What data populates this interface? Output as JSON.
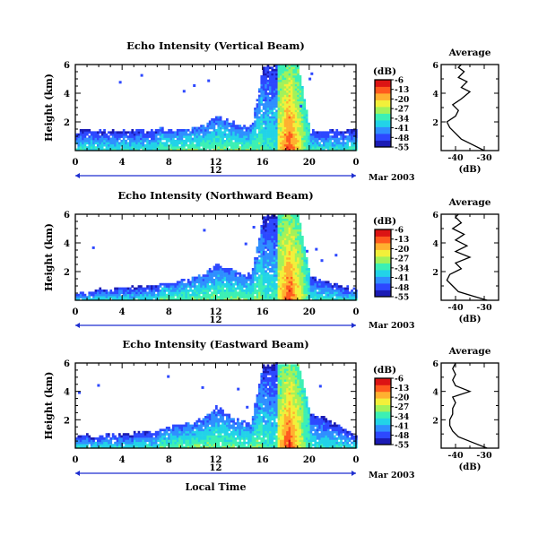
{
  "colors": {
    "colormap": [
      "#1b1bb4",
      "#2d48ff",
      "#2f8fff",
      "#22d3e8",
      "#3cf0b4",
      "#a2f25a",
      "#f2f03a",
      "#ffb030",
      "#ff5a1e",
      "#dc1414"
    ],
    "range_arrow": "#1f2fd0"
  },
  "shared": {
    "date_label": "Mar 2003",
    "bar_label": "12",
    "x_ticks": [
      "0",
      "4",
      "8",
      "12",
      "16",
      "20",
      "0"
    ],
    "y_ticks": [
      "6",
      "4",
      "2"
    ],
    "ylabel": "Height (km)",
    "cbar_unit": "(dB)",
    "cbar_ticks": [
      "-6",
      "-13",
      "-20",
      "-27",
      "-34",
      "-41",
      "-48",
      "-55"
    ],
    "avg_title": "Average",
    "avg_ylabel": "",
    "avg_yticks": [
      "6",
      "4",
      "2"
    ],
    "avg_xlabel": "(dB)",
    "avg_xticks": [
      "-40",
      "-30"
    ],
    "xlabel": "Local Time"
  },
  "chart_data": [
    {
      "type": "heatmap",
      "title": "Echo Intensity (Vertical Beam)",
      "x_unit": "local hour",
      "xlim": [
        0,
        24
      ],
      "ylim": [
        0,
        6
      ],
      "cbar_range": [
        -55,
        -6
      ],
      "echo_top_km": [
        [
          0,
          1.4
        ],
        [
          1,
          1.5
        ],
        [
          2,
          1.5
        ],
        [
          3,
          1.4
        ],
        [
          4,
          1.5
        ],
        [
          5,
          1.5
        ],
        [
          6,
          1.5
        ],
        [
          7,
          1.6
        ],
        [
          8,
          1.5
        ],
        [
          9,
          1.6
        ],
        [
          10,
          1.6
        ],
        [
          11,
          1.8
        ],
        [
          12,
          2.6
        ],
        [
          13,
          2.2
        ],
        [
          14,
          1.8
        ],
        [
          15,
          1.8
        ],
        [
          16,
          6.0
        ],
        [
          17,
          6.0
        ],
        [
          18,
          6.0
        ],
        [
          19,
          6.0
        ],
        [
          20,
          1.5
        ],
        [
          21,
          1.5
        ],
        [
          22,
          1.5
        ],
        [
          23,
          1.5
        ],
        [
          24,
          1.5
        ]
      ],
      "average_profile": [
        [
          -30,
          0.0
        ],
        [
          -34,
          0.4
        ],
        [
          -38,
          0.8
        ],
        [
          -40,
          1.2
        ],
        [
          -42,
          1.6
        ],
        [
          -43,
          2.0
        ],
        [
          -40,
          2.4
        ],
        [
          -39,
          2.8
        ],
        [
          -41,
          3.2
        ],
        [
          -38,
          3.6
        ],
        [
          -35,
          4.1
        ],
        [
          -38,
          4.4
        ],
        [
          -36,
          4.8
        ],
        [
          -39,
          5.1
        ],
        [
          -37,
          5.5
        ],
        [
          -39,
          5.8
        ],
        [
          -38,
          6.0
        ]
      ]
    },
    {
      "type": "heatmap",
      "title": "Echo Intensity (Northward Beam)",
      "x_unit": "local hour",
      "xlim": [
        0,
        24
      ],
      "ylim": [
        0,
        6
      ],
      "cbar_range": [
        -55,
        -6
      ],
      "echo_top_km": [
        [
          0,
          0.6
        ],
        [
          1,
          0.7
        ],
        [
          2,
          0.9
        ],
        [
          3,
          0.8
        ],
        [
          4,
          1.0
        ],
        [
          5,
          1.0
        ],
        [
          6,
          1.1
        ],
        [
          7,
          1.2
        ],
        [
          8,
          1.3
        ],
        [
          9,
          1.5
        ],
        [
          10,
          1.6
        ],
        [
          11,
          2.0
        ],
        [
          12,
          2.6
        ],
        [
          13,
          2.4
        ],
        [
          14,
          2.0
        ],
        [
          15,
          1.8
        ],
        [
          16,
          6.0
        ],
        [
          17,
          6.0
        ],
        [
          18,
          6.0
        ],
        [
          19,
          6.0
        ],
        [
          20,
          1.8
        ],
        [
          21,
          1.5
        ],
        [
          22,
          1.2
        ],
        [
          23,
          1.0
        ],
        [
          24,
          0.8
        ]
      ],
      "average_profile": [
        [
          -29,
          0.0
        ],
        [
          -34,
          0.3
        ],
        [
          -39,
          0.6
        ],
        [
          -41,
          1.0
        ],
        [
          -43,
          1.4
        ],
        [
          -42,
          1.8
        ],
        [
          -38,
          2.2
        ],
        [
          -40,
          2.6
        ],
        [
          -35,
          3.0
        ],
        [
          -40,
          3.4
        ],
        [
          -36,
          3.8
        ],
        [
          -40,
          4.2
        ],
        [
          -37,
          4.6
        ],
        [
          -41,
          5.0
        ],
        [
          -38,
          5.4
        ],
        [
          -40,
          5.8
        ],
        [
          -39,
          6.0
        ]
      ]
    },
    {
      "type": "heatmap",
      "title": "Echo Intensity (Eastward Beam)",
      "x_unit": "local hour",
      "xlim": [
        0,
        24
      ],
      "ylim": [
        0,
        6
      ],
      "cbar_range": [
        -55,
        -6
      ],
      "echo_top_km": [
        [
          0,
          0.9
        ],
        [
          1,
          1.0
        ],
        [
          2,
          0.9
        ],
        [
          3,
          1.0
        ],
        [
          4,
          1.0
        ],
        [
          5,
          1.1
        ],
        [
          6,
          1.2
        ],
        [
          7,
          1.4
        ],
        [
          8,
          1.6
        ],
        [
          9,
          1.8
        ],
        [
          10,
          1.9
        ],
        [
          11,
          2.2
        ],
        [
          12,
          3.0
        ],
        [
          13,
          2.5
        ],
        [
          14,
          2.0
        ],
        [
          15,
          2.0
        ],
        [
          16,
          6.0
        ],
        [
          17,
          6.0
        ],
        [
          18,
          6.0
        ],
        [
          19,
          6.0
        ],
        [
          20,
          2.6
        ],
        [
          21,
          2.3
        ],
        [
          22,
          1.8
        ],
        [
          23,
          1.4
        ],
        [
          24,
          1.0
        ]
      ],
      "average_profile": [
        [
          -29,
          0.0
        ],
        [
          -34,
          0.4
        ],
        [
          -39,
          0.8
        ],
        [
          -41,
          1.2
        ],
        [
          -42,
          1.6
        ],
        [
          -42,
          2.0
        ],
        [
          -41,
          2.4
        ],
        [
          -41,
          2.8
        ],
        [
          -40,
          3.2
        ],
        [
          -41,
          3.6
        ],
        [
          -35,
          4.0
        ],
        [
          -40,
          4.4
        ],
        [
          -41,
          4.8
        ],
        [
          -40,
          5.2
        ],
        [
          -41,
          5.6
        ],
        [
          -40,
          6.0
        ]
      ]
    }
  ]
}
